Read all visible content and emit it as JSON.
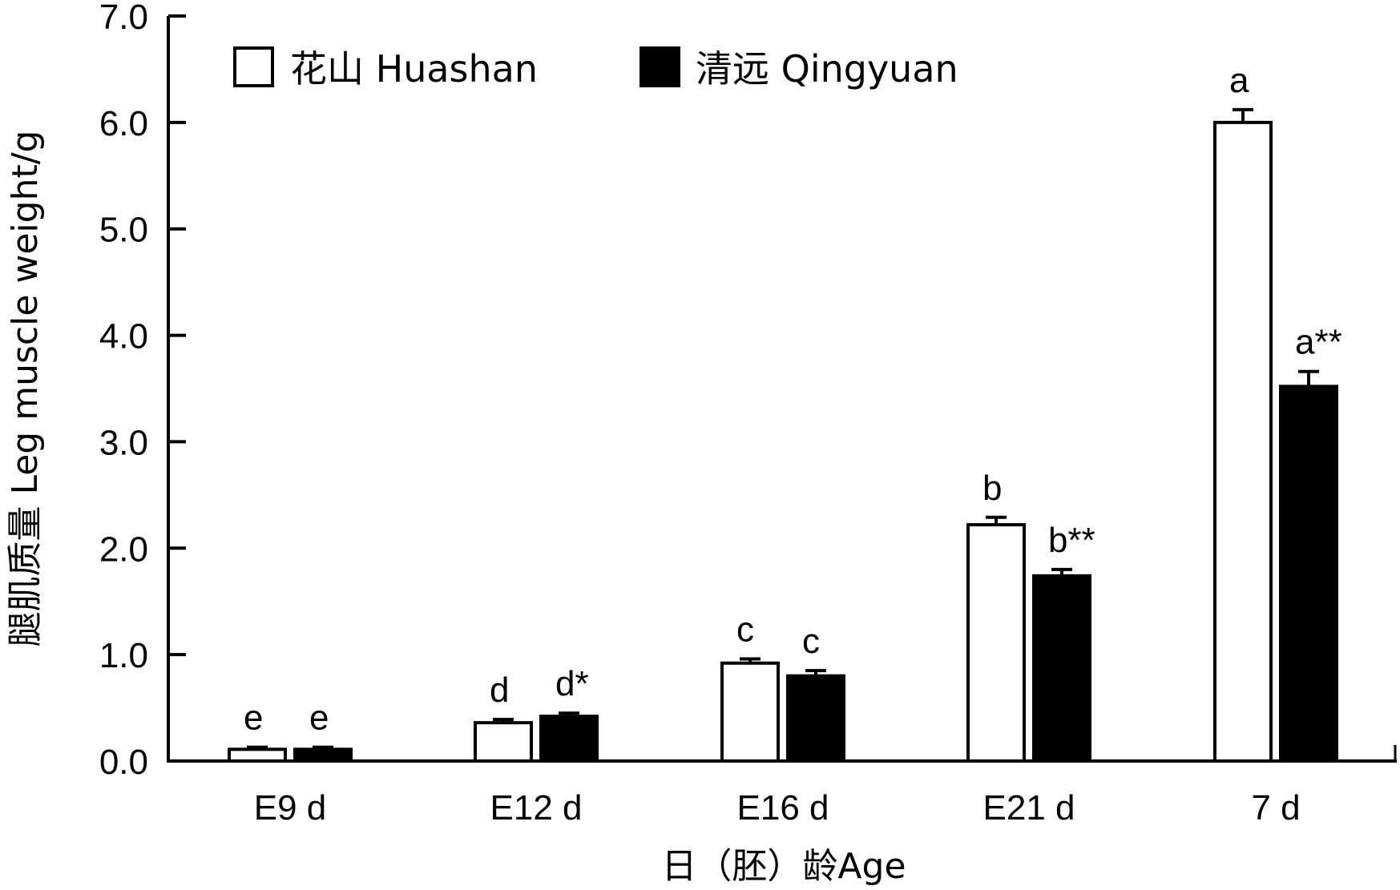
{
  "chart_data": {
    "type": "bar",
    "xlabel": "日（胚）龄Age",
    "ylabel": "腿肌质量 Leg muscle weight/g",
    "ylim": [
      0,
      7.0
    ],
    "yticks": [
      "0.0",
      "1.0",
      "2.0",
      "3.0",
      "4.0",
      "5.0",
      "6.0",
      "7.0"
    ],
    "categories": [
      "E9 d",
      "E12 d",
      "E16 d",
      "E21 d",
      "7 d"
    ],
    "legend_position": "top-left",
    "grid": false,
    "series": [
      {
        "name": "花山 Huashan",
        "fill": "#ffffff",
        "values": [
          0.11,
          0.36,
          0.92,
          2.22,
          6.0
        ],
        "errors": [
          0.02,
          0.03,
          0.04,
          0.07,
          0.12
        ],
        "labels": [
          "e",
          "d",
          "c",
          "b",
          "a"
        ]
      },
      {
        "name": "清远 Qingyuan",
        "fill": "#000000",
        "values": [
          0.11,
          0.42,
          0.8,
          1.74,
          3.52
        ],
        "errors": [
          0.02,
          0.03,
          0.05,
          0.06,
          0.14
        ],
        "labels": [
          "e",
          "d*",
          "c",
          "b**",
          "a**"
        ]
      }
    ]
  }
}
